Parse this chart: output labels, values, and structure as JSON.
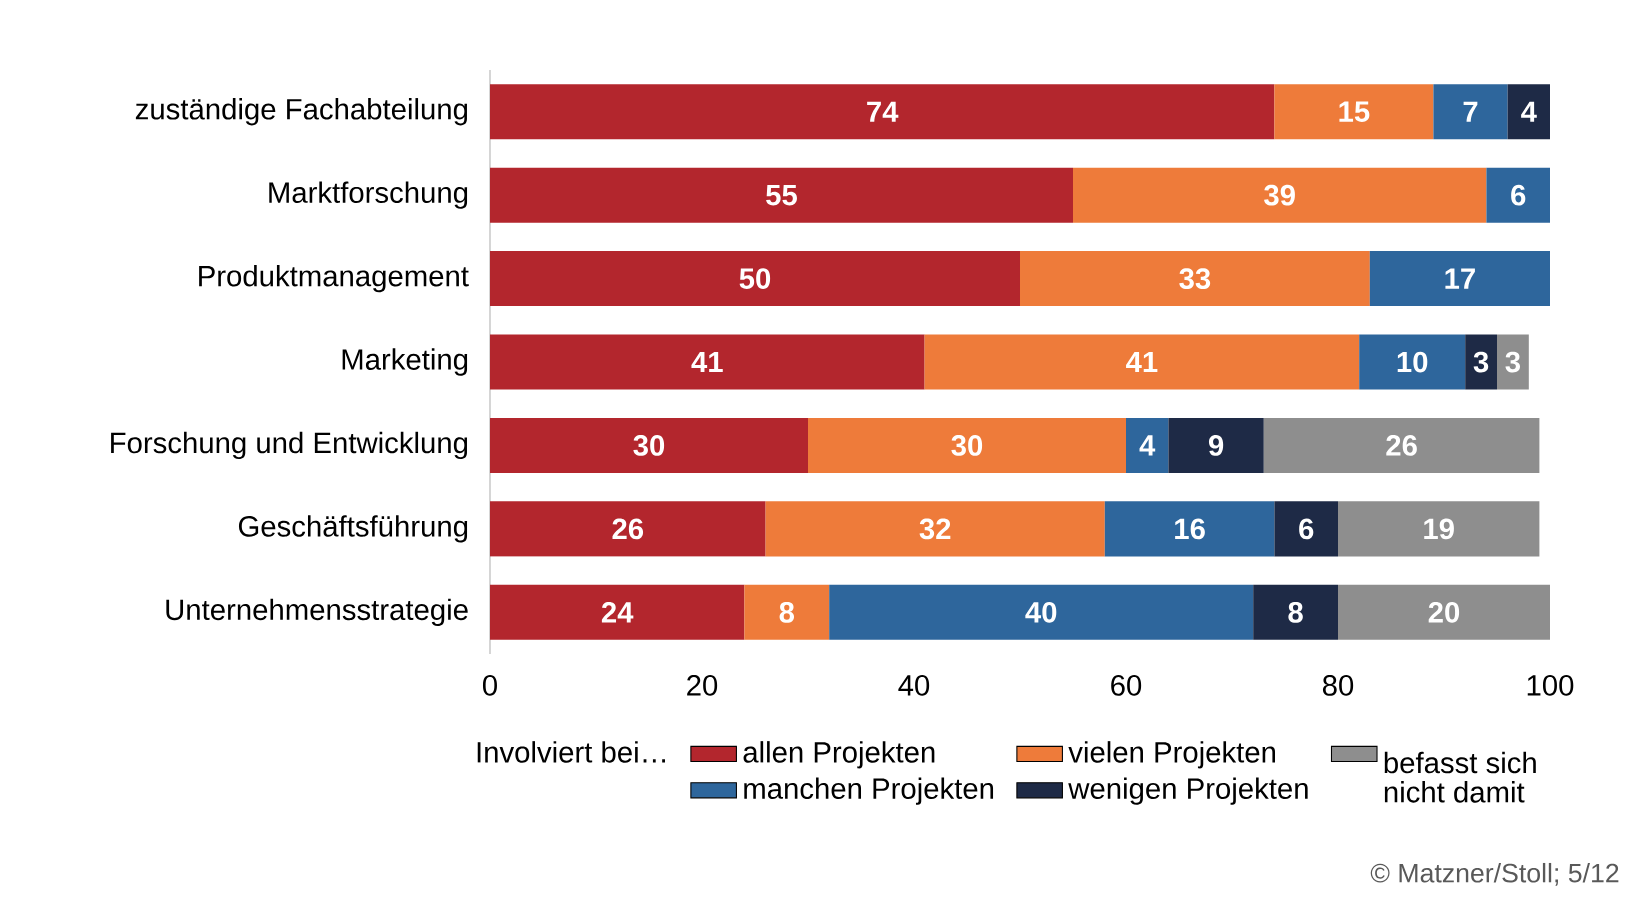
{
  "chart_data": {
    "type": "bar",
    "orientation": "horizontal",
    "stacked": true,
    "data_labels": true,
    "categories": [
      "zuständige Fachabteilung",
      "Marktforschung",
      "Produktmanagement",
      "Marketing",
      "Forschung und Entwicklung",
      "Geschäftsführung",
      "Unternehmensstrategie"
    ],
    "series": [
      {
        "name": "allen Projekten",
        "color": "#b3262d",
        "values": [
          74,
          55,
          50,
          41,
          30,
          26,
          24
        ]
      },
      {
        "name": "vielen Projekten",
        "color": "#ee7b3a",
        "values": [
          15,
          39,
          33,
          41,
          30,
          32,
          8
        ]
      },
      {
        "name": "manchen Projekten",
        "color": "#2e669c",
        "values": [
          7,
          6,
          17,
          10,
          4,
          16,
          40
        ]
      },
      {
        "name": "wenigen Projekten",
        "color": "#1e2a46",
        "values": [
          4,
          null,
          null,
          3,
          9,
          6,
          8
        ]
      },
      {
        "name": "befasst sich nicht damit",
        "color": "#8e8e8e",
        "values": [
          null,
          null,
          null,
          3,
          26,
          19,
          20
        ]
      }
    ],
    "xlim": [
      0,
      100
    ],
    "xticks": [
      0,
      20,
      40,
      60,
      80,
      100
    ],
    "legend": "bottom",
    "legend_title": "Involviert bei…",
    "annotations": [
      "© Matzner/Stoll; 5/12"
    ]
  }
}
